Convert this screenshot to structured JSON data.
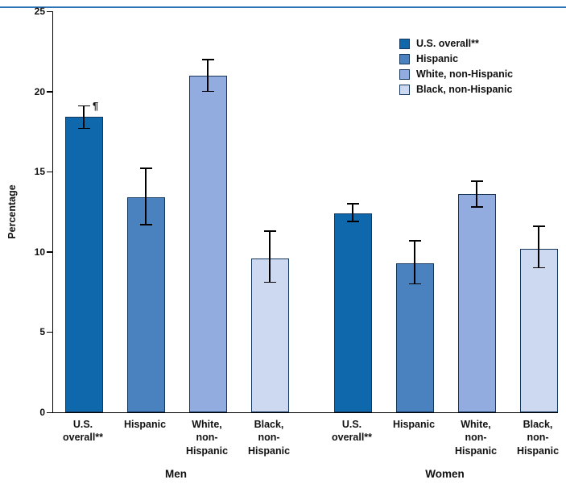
{
  "colors": {
    "top_rule": "#2e75b5",
    "axis": "#000000",
    "error_bar": "#000000",
    "bar_border": "#16365c"
  },
  "chart_data": {
    "type": "bar",
    "title": "",
    "ylabel": "Percentage",
    "xlabel": "",
    "ylim": [
      0,
      25
    ],
    "yticks": [
      0,
      5,
      10,
      15,
      20,
      25
    ],
    "grid": false,
    "legend_position": "top-right",
    "groups": [
      "Men",
      "Women"
    ],
    "categories": [
      "U.S. overall**",
      "Hispanic",
      "White, non-Hispanic",
      "Black, non-Hispanic"
    ],
    "category_label_lines": [
      [
        "U.S.",
        "overall**"
      ],
      [
        "Hispanic"
      ],
      [
        "White,",
        "non-",
        "Hispanic"
      ],
      [
        "Black,",
        "non-",
        "Hispanic"
      ]
    ],
    "series": [
      {
        "name": "U.S. overall**",
        "color": "#0f68ab",
        "values": [
          18.4,
          12.4
        ],
        "ci": [
          [
            17.7,
            19.1
          ],
          [
            11.9,
            13.0
          ]
        ]
      },
      {
        "name": "Hispanic",
        "color": "#4a82c0",
        "values": [
          13.4,
          9.3
        ],
        "ci": [
          [
            11.7,
            15.2
          ],
          [
            8.0,
            10.7
          ]
        ]
      },
      {
        "name": "White, non-Hispanic",
        "color": "#93ace0",
        "values": [
          21.0,
          13.6
        ],
        "ci": [
          [
            20.0,
            22.0
          ],
          [
            12.8,
            14.4
          ]
        ]
      },
      {
        "name": "Black, non-Hispanic",
        "color": "#cdd9f0",
        "values": [
          9.6,
          10.2
        ],
        "ci": [
          [
            8.1,
            11.3
          ],
          [
            9.0,
            11.6
          ]
        ]
      }
    ],
    "annotations": [
      {
        "text": "¶",
        "group": "Men",
        "category": "U.S. overall**",
        "y": 19.4
      }
    ]
  }
}
